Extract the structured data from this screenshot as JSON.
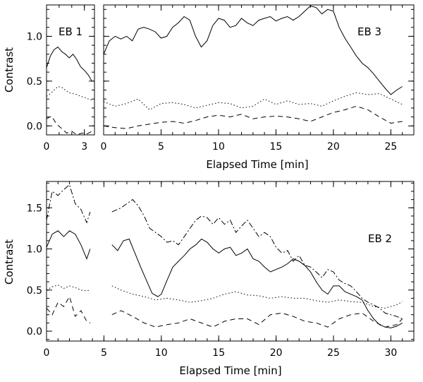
{
  "chart_data": [
    {
      "type": "line",
      "label": "EB 1",
      "ylabel": "Contrast",
      "xlabel": "",
      "xlim": [
        0,
        3.8
      ],
      "ylim": [
        -0.1,
        1.35
      ],
      "xticks": [
        0,
        3
      ],
      "yticks": [
        0.0,
        0.5,
        1.0
      ],
      "series": [
        {
          "style": "solid",
          "x": [
            0,
            0.3,
            0.6,
            0.9,
            1.2,
            1.5,
            1.8,
            2.1,
            2.4,
            2.7,
            3.0,
            3.3,
            3.6
          ],
          "y": [
            0.65,
            0.78,
            0.85,
            0.88,
            0.83,
            0.8,
            0.76,
            0.8,
            0.74,
            0.66,
            0.62,
            0.57,
            0.5
          ]
        },
        {
          "style": "dotted",
          "x": [
            0,
            0.3,
            0.6,
            0.9,
            1.2,
            1.5,
            1.8,
            2.1,
            2.4,
            2.7,
            3.0,
            3.3,
            3.6
          ],
          "y": [
            0.33,
            0.36,
            0.4,
            0.44,
            0.43,
            0.4,
            0.37,
            0.36,
            0.35,
            0.33,
            0.32,
            0.3,
            0.29
          ]
        },
        {
          "style": "dashed",
          "x": [
            0,
            0.4,
            0.8,
            1.2,
            1.6,
            2.0,
            2.4,
            2.8,
            3.2,
            3.6
          ],
          "y": [
            0.08,
            0.11,
            0.02,
            -0.03,
            -0.08,
            -0.06,
            -0.1,
            -0.08,
            -0.09,
            -0.06
          ]
        }
      ]
    },
    {
      "type": "line",
      "label": "EB 3",
      "xlabel": "Elapsed Time [min]",
      "ylabel": "",
      "xlim": [
        0,
        27
      ],
      "ylim": [
        -0.1,
        1.35
      ],
      "xticks": [
        0,
        5,
        10,
        15,
        20,
        25
      ],
      "yticks": [
        0.0,
        0.5,
        1.0
      ],
      "series": [
        {
          "style": "solid",
          "x": [
            0,
            0.5,
            1,
            1.5,
            2,
            2.5,
            3,
            3.5,
            4,
            4.5,
            5,
            5.5,
            6,
            6.5,
            7,
            7.5,
            8,
            8.5,
            9,
            9.5,
            10,
            10.5,
            11,
            11.5,
            12,
            12.5,
            13,
            13.5,
            14,
            14.5,
            15,
            15.5,
            16,
            16.5,
            17,
            17.5,
            18,
            18.5,
            19,
            19.5,
            20,
            20.5,
            21,
            21.5,
            22,
            22.5,
            23,
            23.5,
            24,
            24.5,
            25,
            25.5,
            26
          ],
          "y": [
            0.8,
            0.95,
            1.0,
            0.97,
            1.0,
            0.95,
            1.08,
            1.1,
            1.08,
            1.05,
            0.98,
            1.0,
            1.1,
            1.15,
            1.22,
            1.18,
            1.0,
            0.88,
            0.95,
            1.12,
            1.2,
            1.18,
            1.1,
            1.12,
            1.2,
            1.15,
            1.12,
            1.18,
            1.2,
            1.22,
            1.17,
            1.2,
            1.22,
            1.18,
            1.22,
            1.28,
            1.34,
            1.32,
            1.25,
            1.3,
            1.28,
            1.1,
            0.98,
            0.88,
            0.78,
            0.7,
            0.65,
            0.58,
            0.5,
            0.42,
            0.35,
            0.4,
            0.44
          ]
        },
        {
          "style": "dotted",
          "x": [
            0,
            1,
            2,
            3,
            4,
            5,
            6,
            7,
            8,
            9,
            10,
            11,
            12,
            13,
            14,
            15,
            16,
            17,
            18,
            19,
            20,
            21,
            22,
            23,
            24,
            25,
            26
          ],
          "y": [
            0.27,
            0.22,
            0.25,
            0.3,
            0.18,
            0.25,
            0.26,
            0.24,
            0.2,
            0.23,
            0.26,
            0.25,
            0.2,
            0.22,
            0.3,
            0.24,
            0.28,
            0.24,
            0.25,
            0.22,
            0.28,
            0.33,
            0.37,
            0.35,
            0.36,
            0.3,
            0.24
          ]
        },
        {
          "style": "dashed",
          "x": [
            0,
            1,
            2,
            3,
            4,
            5,
            6,
            7,
            8,
            9,
            10,
            11,
            12,
            13,
            14,
            15,
            16,
            17,
            18,
            19,
            20,
            21,
            22,
            23,
            24,
            25,
            26
          ],
          "y": [
            0.0,
            -0.02,
            -0.03,
            0.0,
            0.02,
            0.04,
            0.05,
            0.03,
            0.06,
            0.1,
            0.12,
            0.1,
            0.13,
            0.08,
            0.1,
            0.11,
            0.1,
            0.08,
            0.05,
            0.1,
            0.15,
            0.18,
            0.22,
            0.18,
            0.1,
            0.03,
            0.05
          ]
        }
      ]
    },
    {
      "type": "line",
      "label": "EB 2",
      "xlabel": "Elapsed Time [min]",
      "ylabel": "Contrast",
      "xlim": [
        0,
        32
      ],
      "ylim": [
        -0.12,
        1.82
      ],
      "xticks": [
        0,
        5,
        10,
        15,
        20,
        25,
        30
      ],
      "yticks": [
        0.0,
        0.5,
        1.0,
        1.5
      ],
      "series": [
        {
          "style": "solid",
          "x": [
            0,
            0.5,
            1,
            1.5,
            2,
            2.5,
            3,
            3.5,
            3.8,
            null,
            5.7,
            6.2,
            6.7,
            7.2,
            7.7,
            8.2,
            8.7,
            9.2,
            9.7,
            10.0,
            10.5,
            11,
            11.5,
            12,
            12.5,
            13,
            13.5,
            14,
            14.5,
            15,
            15.5,
            16,
            16.5,
            17,
            17.5,
            18,
            18.5,
            19,
            19.5,
            20,
            20.5,
            21,
            21.5,
            22,
            22.5,
            23,
            23.5,
            24,
            24.5,
            25,
            25.5,
            26,
            26.5,
            27,
            27.5,
            28,
            28.5,
            29,
            29.5,
            30,
            30.5,
            31
          ],
          "y": [
            1.02,
            1.18,
            1.22,
            1.15,
            1.22,
            1.18,
            1.05,
            0.88,
            1.0,
            null,
            1.05,
            0.98,
            1.1,
            1.12,
            0.95,
            0.78,
            0.62,
            0.46,
            0.42,
            0.45,
            0.62,
            0.78,
            0.85,
            0.92,
            1.0,
            1.05,
            1.12,
            1.08,
            1.0,
            0.95,
            1.0,
            1.02,
            0.92,
            0.95,
            1.0,
            0.88,
            0.85,
            0.78,
            0.72,
            0.75,
            0.78,
            0.82,
            0.88,
            0.85,
            0.8,
            0.72,
            0.6,
            0.5,
            0.45,
            0.55,
            0.55,
            0.48,
            0.45,
            0.42,
            0.38,
            0.25,
            0.15,
            0.08,
            0.05,
            0.04,
            0.06,
            0.1
          ]
        },
        {
          "style": "dotted",
          "x": [
            0,
            0.5,
            1,
            1.5,
            2,
            2.5,
            3,
            3.5,
            3.8,
            null,
            5.7,
            6.5,
            7.5,
            8.5,
            9.5,
            10.5,
            11.5,
            12.5,
            13.5,
            14.5,
            15.5,
            16.5,
            17.5,
            18.5,
            19.5,
            20.5,
            21.5,
            22.5,
            23.5,
            24.5,
            25.5,
            26.5,
            27.5,
            28.5,
            29.5,
            30.5,
            31
          ],
          "y": [
            0.5,
            0.54,
            0.56,
            0.52,
            0.55,
            0.53,
            0.5,
            0.49,
            0.5,
            null,
            0.55,
            0.5,
            0.45,
            0.42,
            0.38,
            0.4,
            0.38,
            0.35,
            0.37,
            0.4,
            0.45,
            0.48,
            0.44,
            0.43,
            0.4,
            0.42,
            0.4,
            0.4,
            0.37,
            0.35,
            0.38,
            0.36,
            0.35,
            0.3,
            0.28,
            0.32,
            0.36
          ]
        },
        {
          "style": "dashed",
          "x": [
            0,
            0.5,
            1,
            1.5,
            2,
            2.5,
            3,
            3.5,
            3.8,
            null,
            5.7,
            6.5,
            7.5,
            8.5,
            9.5,
            10.5,
            11.5,
            12.5,
            13.5,
            14.5,
            15.5,
            16.5,
            17.5,
            18.5,
            19.5,
            20.5,
            21.5,
            22.5,
            23.5,
            24.5,
            25.5,
            26.5,
            27.5,
            28.5,
            29.5,
            30.5,
            31
          ],
          "y": [
            0.28,
            0.2,
            0.35,
            0.3,
            0.42,
            0.18,
            0.25,
            0.12,
            0.1,
            null,
            0.2,
            0.25,
            0.18,
            0.1,
            0.05,
            0.08,
            0.1,
            0.15,
            0.1,
            0.05,
            0.12,
            0.15,
            0.15,
            0.08,
            0.2,
            0.22,
            0.18,
            0.12,
            0.1,
            0.05,
            0.15,
            0.2,
            0.22,
            0.12,
            0.05,
            0.08,
            0.15
          ]
        },
        {
          "style": "dashdot",
          "x": [
            0,
            0.5,
            1,
            1.5,
            2,
            2.5,
            3,
            3.5,
            3.8,
            null,
            5.7,
            6.5,
            7.5,
            8,
            8.5,
            9,
            9.5,
            10,
            10.5,
            11,
            11.5,
            12,
            12.5,
            13,
            13.5,
            14,
            14.5,
            15,
            15.5,
            16,
            16.5,
            17,
            17.5,
            18,
            18.5,
            19,
            19.5,
            20,
            20.5,
            21,
            21.5,
            22,
            22.5,
            23,
            23.5,
            24,
            24.5,
            25,
            25.5,
            26,
            26.5,
            27,
            27.5,
            28,
            28.5,
            29,
            29.5,
            30,
            30.5,
            31
          ],
          "y": [
            1.35,
            1.7,
            1.65,
            1.72,
            1.78,
            1.55,
            1.48,
            1.32,
            1.45,
            null,
            1.45,
            1.5,
            1.6,
            1.52,
            1.4,
            1.25,
            1.2,
            1.15,
            1.08,
            1.1,
            1.05,
            1.15,
            1.25,
            1.35,
            1.4,
            1.38,
            1.3,
            1.38,
            1.3,
            1.35,
            1.2,
            1.28,
            1.35,
            1.25,
            1.15,
            1.2,
            1.15,
            1.02,
            0.95,
            0.98,
            0.85,
            0.92,
            0.8,
            0.78,
            0.72,
            0.65,
            0.75,
            0.72,
            0.62,
            0.58,
            0.55,
            0.48,
            0.4,
            0.35,
            0.32,
            0.28,
            0.22,
            0.2,
            0.18,
            0.15
          ]
        }
      ]
    }
  ]
}
